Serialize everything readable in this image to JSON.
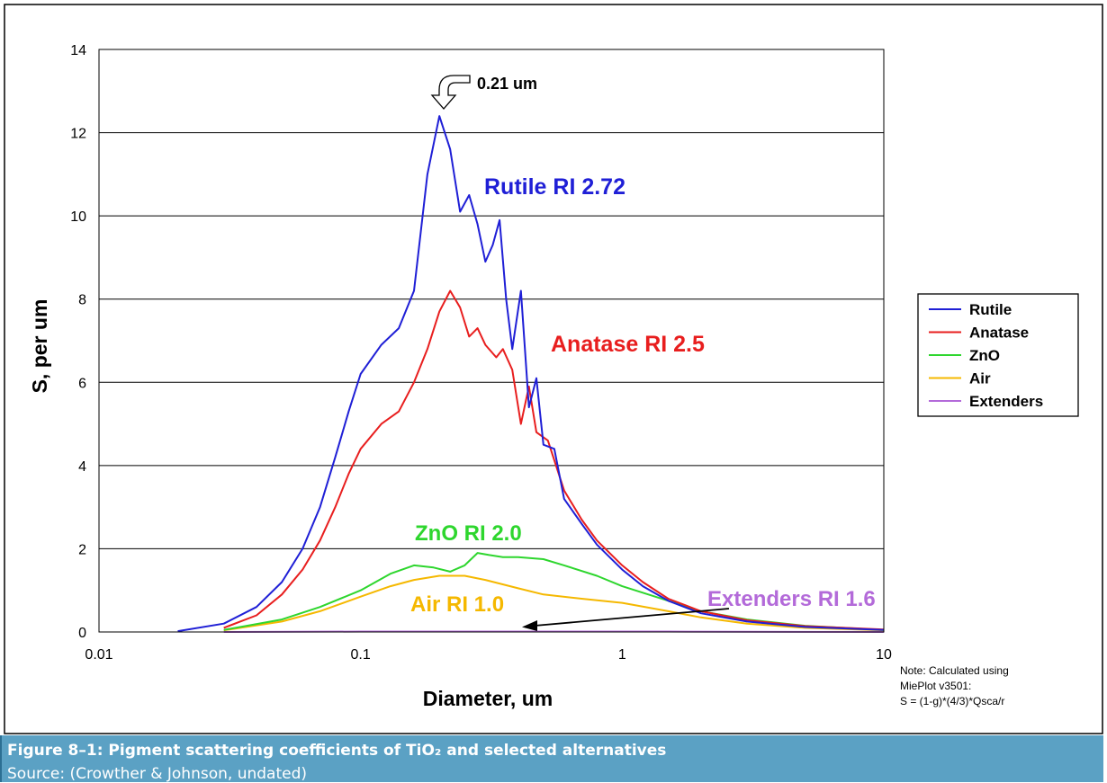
{
  "caption": {
    "title": "Figure 8–1:  Pigment scattering coefficients of TiO₂ and selected alternatives",
    "source": "Source:  (Crowther & Johnson, undated)"
  },
  "note": {
    "line1": "Note: Calculated using",
    "line2": "MiePlot v3501:",
    "line3": "S = (1-g)*(4/3)*Qsca/r"
  },
  "chart_data": {
    "type": "line",
    "xlabel": "Diameter, um",
    "ylabel": "S, per um",
    "x_scale": "log",
    "xlim": [
      0.01,
      10
    ],
    "ylim": [
      0,
      14
    ],
    "x_ticks": [
      0.01,
      0.1,
      1,
      10
    ],
    "x_tick_labels": [
      "0.01",
      "0.1",
      "1",
      "10"
    ],
    "y_ticks": [
      0,
      2,
      4,
      6,
      8,
      10,
      12,
      14
    ],
    "y_tick_labels": [
      "0",
      "2",
      "4",
      "6",
      "8",
      "10",
      "12",
      "14"
    ],
    "grid": "horizontal",
    "legend_position": "right",
    "series": [
      {
        "name": "Rutile",
        "color": "#1f1fd6",
        "points": [
          [
            0.02,
            0.02
          ],
          [
            0.03,
            0.2
          ],
          [
            0.04,
            0.6
          ],
          [
            0.05,
            1.2
          ],
          [
            0.06,
            2.0
          ],
          [
            0.07,
            3.0
          ],
          [
            0.08,
            4.2
          ],
          [
            0.09,
            5.3
          ],
          [
            0.1,
            6.2
          ],
          [
            0.12,
            6.9
          ],
          [
            0.14,
            7.3
          ],
          [
            0.16,
            8.2
          ],
          [
            0.18,
            11.0
          ],
          [
            0.2,
            12.4
          ],
          [
            0.22,
            11.6
          ],
          [
            0.24,
            10.1
          ],
          [
            0.26,
            10.5
          ],
          [
            0.28,
            9.8
          ],
          [
            0.3,
            8.9
          ],
          [
            0.32,
            9.3
          ],
          [
            0.34,
            9.9
          ],
          [
            0.36,
            8.0
          ],
          [
            0.38,
            6.8
          ],
          [
            0.41,
            8.2
          ],
          [
            0.44,
            5.4
          ],
          [
            0.47,
            6.1
          ],
          [
            0.5,
            4.5
          ],
          [
            0.55,
            4.4
          ],
          [
            0.6,
            3.2
          ],
          [
            0.7,
            2.6
          ],
          [
            0.8,
            2.1
          ],
          [
            1.0,
            1.5
          ],
          [
            1.2,
            1.1
          ],
          [
            1.5,
            0.75
          ],
          [
            2.0,
            0.45
          ],
          [
            3.0,
            0.25
          ],
          [
            5.0,
            0.12
          ],
          [
            10.0,
            0.05
          ]
        ]
      },
      {
        "name": "Anatase",
        "color": "#e81e1e",
        "points": [
          [
            0.03,
            0.1
          ],
          [
            0.04,
            0.4
          ],
          [
            0.05,
            0.9
          ],
          [
            0.06,
            1.5
          ],
          [
            0.07,
            2.2
          ],
          [
            0.08,
            3.0
          ],
          [
            0.09,
            3.8
          ],
          [
            0.1,
            4.4
          ],
          [
            0.12,
            5.0
          ],
          [
            0.14,
            5.3
          ],
          [
            0.16,
            6.0
          ],
          [
            0.18,
            6.8
          ],
          [
            0.2,
            7.7
          ],
          [
            0.22,
            8.2
          ],
          [
            0.24,
            7.8
          ],
          [
            0.26,
            7.1
          ],
          [
            0.28,
            7.3
          ],
          [
            0.3,
            6.9
          ],
          [
            0.33,
            6.6
          ],
          [
            0.35,
            6.8
          ],
          [
            0.38,
            6.3
          ],
          [
            0.41,
            5.0
          ],
          [
            0.44,
            5.9
          ],
          [
            0.47,
            4.8
          ],
          [
            0.52,
            4.6
          ],
          [
            0.6,
            3.4
          ],
          [
            0.7,
            2.7
          ],
          [
            0.8,
            2.2
          ],
          [
            1.0,
            1.6
          ],
          [
            1.2,
            1.2
          ],
          [
            1.5,
            0.8
          ],
          [
            2.0,
            0.5
          ],
          [
            3.0,
            0.28
          ],
          [
            5.0,
            0.14
          ],
          [
            10.0,
            0.06
          ]
        ]
      },
      {
        "name": "ZnO",
        "color": "#2ed62e",
        "points": [
          [
            0.03,
            0.05
          ],
          [
            0.05,
            0.3
          ],
          [
            0.07,
            0.6
          ],
          [
            0.1,
            1.0
          ],
          [
            0.13,
            1.4
          ],
          [
            0.16,
            1.6
          ],
          [
            0.19,
            1.55
          ],
          [
            0.22,
            1.45
          ],
          [
            0.25,
            1.6
          ],
          [
            0.28,
            1.9
          ],
          [
            0.31,
            1.85
          ],
          [
            0.35,
            1.8
          ],
          [
            0.4,
            1.8
          ],
          [
            0.5,
            1.75
          ],
          [
            0.6,
            1.6
          ],
          [
            0.8,
            1.35
          ],
          [
            1.0,
            1.1
          ],
          [
            1.5,
            0.75
          ],
          [
            2.0,
            0.5
          ],
          [
            3.0,
            0.3
          ],
          [
            5.0,
            0.15
          ],
          [
            10.0,
            0.05
          ]
        ]
      },
      {
        "name": "Air",
        "color": "#f5b800",
        "points": [
          [
            0.03,
            0.04
          ],
          [
            0.05,
            0.25
          ],
          [
            0.07,
            0.5
          ],
          [
            0.1,
            0.85
          ],
          [
            0.13,
            1.1
          ],
          [
            0.16,
            1.25
          ],
          [
            0.2,
            1.35
          ],
          [
            0.25,
            1.35
          ],
          [
            0.3,
            1.25
          ],
          [
            0.4,
            1.05
          ],
          [
            0.5,
            0.9
          ],
          [
            0.7,
            0.8
          ],
          [
            1.0,
            0.7
          ],
          [
            1.5,
            0.5
          ],
          [
            2.0,
            0.35
          ],
          [
            3.0,
            0.2
          ],
          [
            5.0,
            0.1
          ],
          [
            10.0,
            0.04
          ]
        ]
      },
      {
        "name": "Extenders",
        "color": "#b36ad9",
        "points": [
          [
            0.03,
            0.0
          ],
          [
            0.1,
            0.01
          ],
          [
            0.3,
            0.01
          ],
          [
            1.0,
            0.01
          ],
          [
            1.5,
            0.01
          ],
          [
            3.0,
            0.005
          ],
          [
            10.0,
            0.0
          ]
        ]
      }
    ],
    "annotations": [
      {
        "text": "0.21 um",
        "color": "#000000"
      },
      {
        "text": "Rutile RI 2.72",
        "color": "#1f1fd6"
      },
      {
        "text": "Anatase RI 2.5",
        "color": "#e81e1e"
      },
      {
        "text": "ZnO RI 2.0",
        "color": "#2ed62e"
      },
      {
        "text": "Air RI 1.0",
        "color": "#f5b800"
      },
      {
        "text": "Extenders RI 1.6",
        "color": "#b36ad9"
      }
    ]
  }
}
